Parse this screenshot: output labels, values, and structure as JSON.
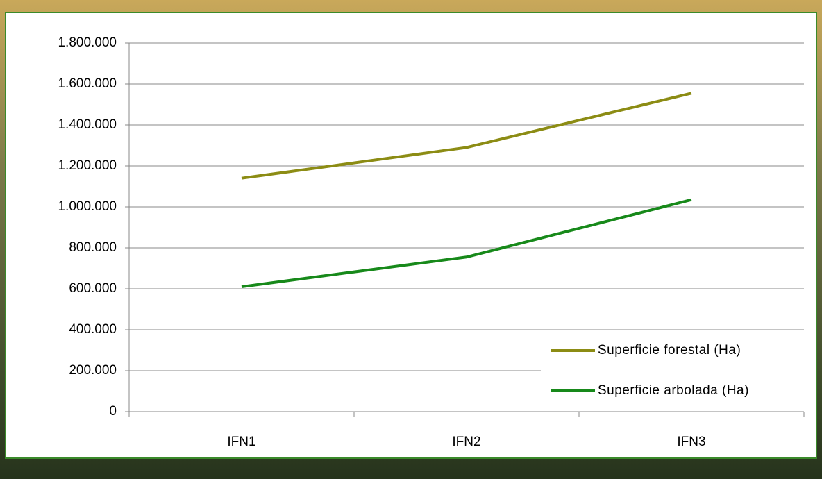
{
  "chart_data": {
    "type": "line",
    "categories": [
      "IFN1",
      "IFN2",
      "IFN3"
    ],
    "series": [
      {
        "name": "Superficie forestal (Ha)",
        "color": "#8c8c14",
        "values": [
          1140000,
          1290000,
          1555000
        ]
      },
      {
        "name": "Superficie arbolada (Ha)",
        "color": "#17891a",
        "values": [
          610000,
          755000,
          1035000
        ]
      }
    ],
    "ylim": [
      0,
      1800000
    ],
    "yticks": [
      0,
      {
        "value": 200000,
        "label": "200.000"
      },
      {
        "value": 400000,
        "label": "400.000"
      },
      {
        "value": 600000,
        "label": "600.000"
      },
      {
        "value": 800000,
        "label": "800.000"
      },
      {
        "value": 1000000,
        "label": "1.000.000"
      },
      {
        "value": 1200000,
        "label": "1.200.000"
      },
      {
        "value": 1400000,
        "label": "1.400.000"
      },
      {
        "value": 1600000,
        "label": "1.600.000"
      },
      {
        "value": 1800000,
        "label": "1.800.000"
      }
    ],
    "grid": true,
    "legend": "lower right"
  }
}
